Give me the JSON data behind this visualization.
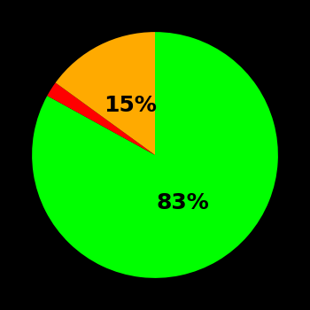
{
  "slices": [
    83,
    2,
    15
  ],
  "colors": [
    "#00ff00",
    "#ff0000",
    "#ffaa00"
  ],
  "labels": [
    "83%",
    "",
    "15%"
  ],
  "background_color": "#000000",
  "startangle": 90,
  "figsize": [
    3.5,
    3.5
  ],
  "dpi": 100,
  "text_color": "#000000",
  "text_fontsize": 18,
  "text_fontweight": "bold",
  "label_radii": [
    0.45,
    0,
    0.45
  ]
}
